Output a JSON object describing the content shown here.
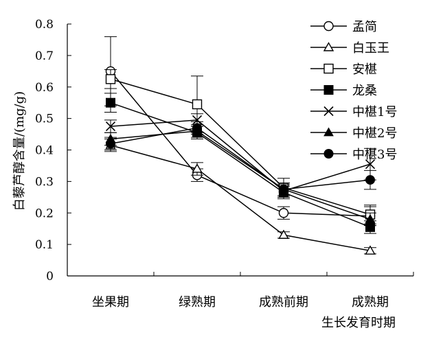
{
  "chart_data": {
    "type": "line",
    "title": "",
    "xlabel": "生长发育时期",
    "ylabel": "白藜芦醇含量/(mg/g)",
    "categories": [
      "坐果期",
      "绿熟期",
      "成熟前期",
      "成熟期"
    ],
    "ylim": [
      0,
      0.8
    ],
    "yticks": [
      "0",
      "0.1",
      "0.2",
      "0.3",
      "0.4",
      "0.5",
      "0.6",
      "0.7",
      "0.8"
    ],
    "grid": false,
    "legend_position": "right",
    "series": [
      {
        "name": "孟简",
        "marker": "circle-open",
        "values": [
          0.65,
          0.32,
          0.2,
          0.19
        ],
        "errors": [
          0.11,
          0.02,
          0.02,
          0.03
        ]
      },
      {
        "name": "白玉王",
        "marker": "triangle-open",
        "values": [
          0.415,
          0.34,
          0.13,
          0.08
        ],
        "errors": [
          0.02,
          0.02,
          0.01,
          0.01
        ]
      },
      {
        "name": "安椹",
        "marker": "square-open",
        "values": [
          0.625,
          0.545,
          0.28,
          0.195
        ],
        "errors": [
          0.03,
          0.09,
          0.03,
          0.03
        ]
      },
      {
        "name": "龙桑",
        "marker": "square-filled",
        "values": [
          0.55,
          0.455,
          0.265,
          0.155
        ],
        "errors": [
          0.03,
          0.02,
          0.02,
          0.02
        ]
      },
      {
        "name": "中椹1号",
        "marker": "x",
        "values": [
          0.475,
          0.495,
          0.27,
          0.355
        ],
        "errors": [
          0.02,
          0.02,
          0.02,
          0.05
        ]
      },
      {
        "name": "中椹2号",
        "marker": "triangle-filled",
        "values": [
          0.435,
          0.46,
          0.275,
          0.18
        ],
        "errors": [
          0.02,
          0.02,
          0.02,
          0.02
        ]
      },
      {
        "name": "中椹3号",
        "marker": "circle-filled",
        "values": [
          0.42,
          0.47,
          0.275,
          0.305
        ],
        "errors": [
          0.02,
          0.02,
          0.02,
          0.03
        ]
      }
    ]
  }
}
